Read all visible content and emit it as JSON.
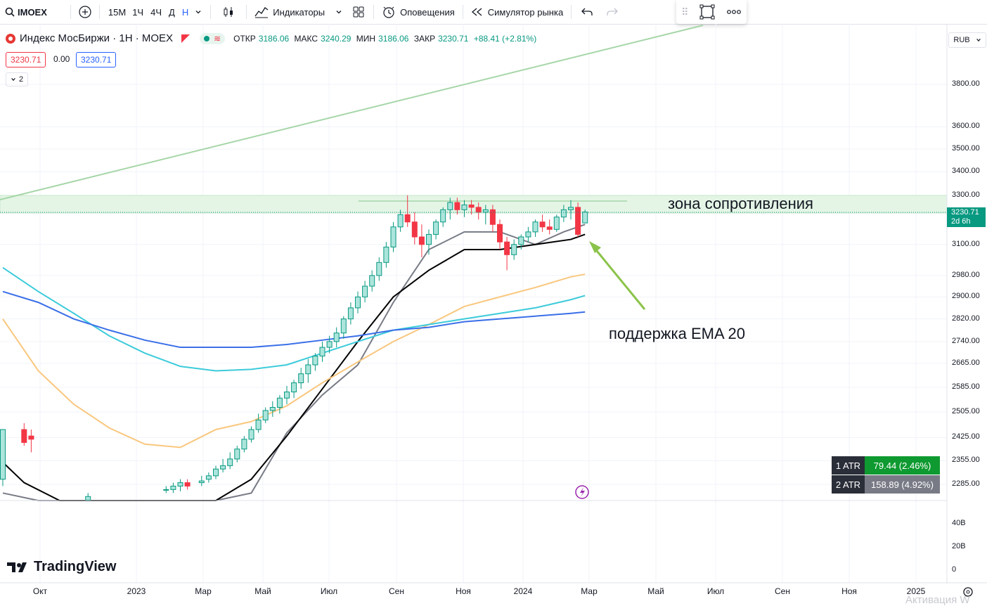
{
  "toolbar": {
    "symbol": "IMOEX",
    "intervals": [
      "15М",
      "1Ч",
      "4Ч",
      "Д",
      "Н"
    ],
    "indicators_label": "Индикаторы",
    "alerts_label": "Оповещения",
    "replay_label": "Симулятор рынка"
  },
  "legend": {
    "title": "Индекс МосБиржи · 1Н · MOEX",
    "open_label": "ОТКР",
    "open": "3186.06",
    "high_label": "МАКС",
    "high": "3240.29",
    "low_label": "МИН",
    "low": "3186.06",
    "close_label": "ЗАКР",
    "close": "3230.71",
    "change": "+88.41 (+2.81%)",
    "bid": "3230.71",
    "spread": "0.00",
    "ask": "3230.71",
    "collapsed_count": "2"
  },
  "currency": "RUB",
  "price_tag": {
    "price": "3230.71",
    "countdown": "2d 6h"
  },
  "annotations": {
    "resistance": "зона сопротивления",
    "support": "поддержка EMA 20"
  },
  "atr": [
    {
      "label": "1 ATR",
      "value": "79.44 (2.46%)",
      "color": "#0e9a30"
    },
    {
      "label": "2 ATR",
      "value": "158.89 (4.92%)",
      "color": "#787b86"
    }
  ],
  "logo": "TradingView",
  "watermark": "Активация W",
  "colors": {
    "up": "#089981",
    "down": "#f23645",
    "up_fill": "#ace5dc"
  },
  "chart_data": {
    "type": "candlestick",
    "timeframe": "1W",
    "y_axis_scale": "log",
    "y_ticks": [
      "3800.00",
      "3600.00",
      "3500.00",
      "3400.00",
      "3300.00",
      "3100.00",
      "2980.00",
      "2900.00",
      "2820.00",
      "2740.00",
      "2665.00",
      "2585.00",
      "2505.00",
      "2425.00",
      "2355.00",
      "2285.00"
    ],
    "volume_ticks": [
      "40В",
      "20В",
      "0"
    ],
    "x_ticks": [
      "Окт",
      "2023",
      "Мар",
      "Май",
      "Июл",
      "Сен",
      "Ноя",
      "2024",
      "Мар",
      "Май",
      "Июл",
      "Сен",
      "Ноя",
      "2025"
    ],
    "resistance_zone": [
      3230,
      3300
    ],
    "last_price": 3230.71,
    "series": [
      {
        "name": "EMA 10",
        "color": "#787b86",
        "values": [
          [
            0,
            2260
          ],
          [
            5,
            2180
          ],
          [
            10,
            1990
          ],
          [
            15,
            1860
          ],
          [
            20,
            1940
          ],
          [
            25,
            2005
          ],
          [
            30,
            2090
          ],
          [
            35,
            2260
          ],
          [
            40,
            2440
          ],
          [
            45,
            2560
          ],
          [
            50,
            2660
          ],
          [
            55,
            2880
          ],
          [
            60,
            3080
          ],
          [
            65,
            3150
          ],
          [
            70,
            3150
          ],
          [
            75,
            3100
          ],
          [
            79,
            3150
          ],
          [
            82,
            3180
          ]
        ]
      },
      {
        "name": "EMA 20",
        "color": "#000000",
        "values": [
          [
            0,
            2350
          ],
          [
            3,
            2290
          ],
          [
            8,
            2150
          ],
          [
            15,
            1980
          ],
          [
            20,
            2010
          ],
          [
            25,
            2060
          ],
          [
            30,
            2170
          ],
          [
            35,
            2300
          ],
          [
            40,
            2430
          ],
          [
            45,
            2580
          ],
          [
            50,
            2740
          ],
          [
            55,
            2900
          ],
          [
            60,
            3000
          ],
          [
            65,
            3080
          ],
          [
            70,
            3080
          ],
          [
            75,
            3100
          ],
          [
            80,
            3120
          ],
          [
            82,
            3140
          ]
        ]
      },
      {
        "name": "EMA 50",
        "color": "#f9c77e",
        "values": [
          [
            0,
            2820
          ],
          [
            5,
            2640
          ],
          [
            10,
            2530
          ],
          [
            15,
            2455
          ],
          [
            20,
            2405
          ],
          [
            25,
            2395
          ],
          [
            30,
            2450
          ],
          [
            35,
            2475
          ],
          [
            40,
            2525
          ],
          [
            45,
            2600
          ],
          [
            50,
            2670
          ],
          [
            55,
            2740
          ],
          [
            60,
            2800
          ],
          [
            65,
            2865
          ],
          [
            70,
            2900
          ],
          [
            75,
            2935
          ],
          [
            80,
            2975
          ],
          [
            82,
            2985
          ]
        ]
      },
      {
        "name": "EMA 100",
        "color": "#3ccbda",
        "values": [
          [
            0,
            3010
          ],
          [
            5,
            2920
          ],
          [
            10,
            2840
          ],
          [
            15,
            2760
          ],
          [
            20,
            2700
          ],
          [
            25,
            2655
          ],
          [
            30,
            2640
          ],
          [
            35,
            2645
          ],
          [
            40,
            2660
          ],
          [
            45,
            2700
          ],
          [
            50,
            2740
          ],
          [
            55,
            2780
          ],
          [
            60,
            2800
          ],
          [
            65,
            2820
          ],
          [
            70,
            2840
          ],
          [
            75,
            2860
          ],
          [
            80,
            2890
          ],
          [
            82,
            2905
          ]
        ]
      },
      {
        "name": "EMA 200",
        "color": "#3a6fe8",
        "values": [
          [
            0,
            2920
          ],
          [
            5,
            2880
          ],
          [
            10,
            2820
          ],
          [
            15,
            2780
          ],
          [
            20,
            2745
          ],
          [
            25,
            2720
          ],
          [
            30,
            2720
          ],
          [
            35,
            2720
          ],
          [
            40,
            2730
          ],
          [
            45,
            2745
          ],
          [
            50,
            2760
          ],
          [
            55,
            2780
          ],
          [
            60,
            2790
          ],
          [
            65,
            2810
          ],
          [
            70,
            2820
          ],
          [
            75,
            2830
          ],
          [
            80,
            2840
          ],
          [
            82,
            2845
          ]
        ]
      }
    ],
    "candles": [
      [
        0,
        2300,
        2450,
        2280,
        2450
      ],
      [
        3,
        2450,
        2470,
        2400,
        2410
      ],
      [
        4,
        2430,
        2450,
        2380,
        2420
      ],
      [
        12,
        2240,
        2260,
        2220,
        2250
      ],
      [
        23,
        2270,
        2280,
        2260,
        2270
      ],
      [
        24,
        2270,
        2290,
        2260,
        2280
      ],
      [
        25,
        2280,
        2300,
        2265,
        2290
      ],
      [
        26,
        2290,
        2300,
        2270,
        2280
      ],
      [
        28,
        2290,
        2310,
        2280,
        2295
      ],
      [
        29,
        2300,
        2320,
        2290,
        2310
      ],
      [
        30,
        2310,
        2340,
        2300,
        2330
      ],
      [
        31,
        2330,
        2360,
        2320,
        2340
      ],
      [
        32,
        2340,
        2380,
        2330,
        2360
      ],
      [
        33,
        2360,
        2400,
        2350,
        2390
      ],
      [
        34,
        2390,
        2430,
        2380,
        2420
      ],
      [
        35,
        2420,
        2460,
        2410,
        2450
      ],
      [
        36,
        2450,
        2500,
        2440,
        2480
      ],
      [
        37,
        2480,
        2520,
        2470,
        2510
      ],
      [
        38,
        2510,
        2540,
        2490,
        2520
      ],
      [
        39,
        2520,
        2560,
        2500,
        2550
      ],
      [
        40,
        2550,
        2590,
        2530,
        2570
      ],
      [
        41,
        2570,
        2610,
        2550,
        2600
      ],
      [
        42,
        2600,
        2650,
        2580,
        2630
      ],
      [
        43,
        2630,
        2680,
        2600,
        2660
      ],
      [
        44,
        2660,
        2700,
        2640,
        2690
      ],
      [
        45,
        2690,
        2740,
        2670,
        2720
      ],
      [
        46,
        2720,
        2760,
        2700,
        2740
      ],
      [
        47,
        2740,
        2790,
        2720,
        2770
      ],
      [
        48,
        2770,
        2830,
        2750,
        2820
      ],
      [
        49,
        2820,
        2880,
        2800,
        2860
      ],
      [
        50,
        2860,
        2920,
        2840,
        2900
      ],
      [
        51,
        2900,
        2960,
        2880,
        2940
      ],
      [
        52,
        2940,
        3000,
        2920,
        2980
      ],
      [
        53,
        2980,
        3050,
        2960,
        3030
      ],
      [
        54,
        3030,
        3110,
        3010,
        3090
      ],
      [
        55,
        3090,
        3190,
        3070,
        3170
      ],
      [
        56,
        3170,
        3240,
        3150,
        3220
      ],
      [
        57,
        3220,
        3300,
        3170,
        3190
      ],
      [
        58,
        3190,
        3230,
        3100,
        3130
      ],
      [
        59,
        3130,
        3180,
        3050,
        3100
      ],
      [
        60,
        3100,
        3160,
        3060,
        3140
      ],
      [
        61,
        3140,
        3200,
        3120,
        3190
      ],
      [
        62,
        3190,
        3250,
        3170,
        3240
      ],
      [
        63,
        3240,
        3290,
        3200,
        3270
      ],
      [
        64,
        3270,
        3290,
        3220,
        3240
      ],
      [
        65,
        3240,
        3280,
        3210,
        3260
      ],
      [
        66,
        3260,
        3280,
        3220,
        3250
      ],
      [
        67,
        3250,
        3270,
        3200,
        3230
      ],
      [
        68,
        3230,
        3260,
        3180,
        3240
      ],
      [
        69,
        3240,
        3260,
        3150,
        3180
      ],
      [
        70,
        3180,
        3200,
        3080,
        3110
      ],
      [
        71,
        3110,
        3130,
        3000,
        3060
      ],
      [
        72,
        3060,
        3120,
        3040,
        3100
      ],
      [
        73,
        3100,
        3140,
        3080,
        3130
      ],
      [
        74,
        3130,
        3170,
        3110,
        3150
      ],
      [
        75,
        3150,
        3200,
        3130,
        3190
      ],
      [
        76,
        3190,
        3220,
        3150,
        3170
      ],
      [
        77,
        3170,
        3200,
        3140,
        3160
      ],
      [
        78,
        3160,
        3220,
        3150,
        3210
      ],
      [
        79,
        3210,
        3260,
        3190,
        3240
      ],
      [
        80,
        3240,
        3280,
        3200,
        3250
      ],
      [
        81,
        3250,
        3270,
        3130,
        3140
      ],
      [
        82,
        3186.06,
        3240.29,
        3186.06,
        3230.71
      ]
    ]
  }
}
